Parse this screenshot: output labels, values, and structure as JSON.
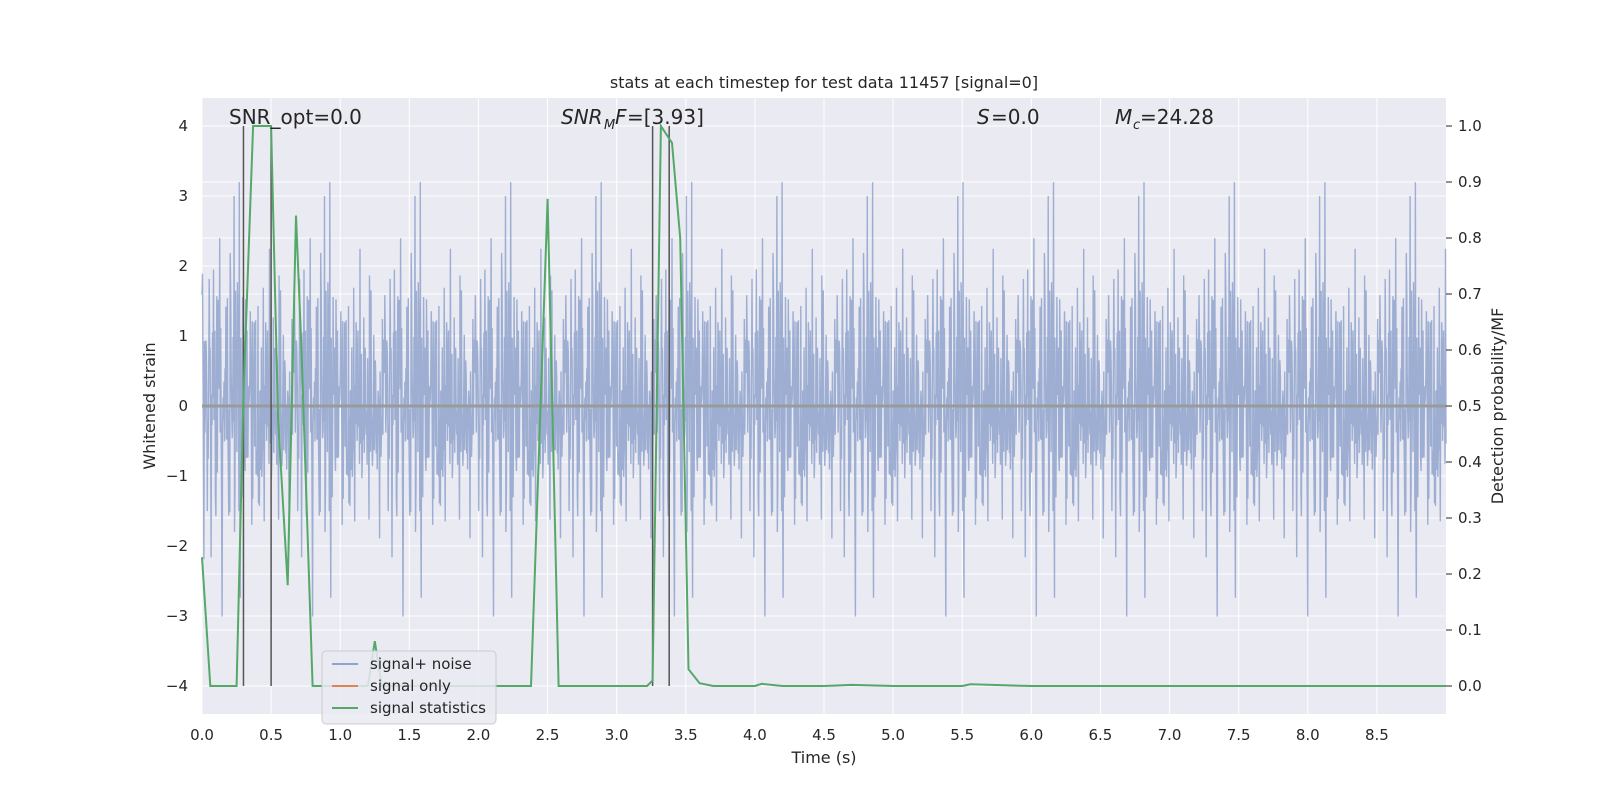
{
  "chart_data": {
    "type": "line",
    "title": "stats at each timestep for test data 11457 [signal=0]",
    "xlabel": "Time (s)",
    "ylabel": "Whitened strain",
    "ylabel_right": "Detection probability/MF",
    "xlim": [
      0.0,
      9.0
    ],
    "ylim": [
      -4.4,
      4.4
    ],
    "ylim_right": [
      -0.05,
      1.05
    ],
    "x_ticks": [
      "0.0",
      "0.5",
      "1.0",
      "1.5",
      "2.0",
      "2.5",
      "3.0",
      "3.5",
      "4.0",
      "4.5",
      "5.0",
      "5.5",
      "6.0",
      "6.5",
      "7.0",
      "7.5",
      "8.0",
      "8.5"
    ],
    "y_ticks": [
      "−4",
      "−3",
      "−2",
      "−1",
      "0",
      "1",
      "2",
      "3",
      "4"
    ],
    "y_right_ticks": [
      "0.0",
      "0.1",
      "0.2",
      "0.3",
      "0.4",
      "0.5",
      "0.6",
      "0.7",
      "0.8",
      "0.9",
      "1.0"
    ],
    "grid": true,
    "legend_position": "lower-left",
    "annotations": {
      "snr_opt": "SNR_opt=0.0",
      "snr_mf": "=[3.93]",
      "s_value": "=0.0",
      "mc_value": "=24.28"
    },
    "series": [
      {
        "name": "signal+ noise",
        "color": "#8fa3cc",
        "kind": "noise",
        "approx_amplitude_range": [
          -3.9,
          3.5
        ]
      },
      {
        "name": "signal only",
        "color": "#dd8452",
        "values_note": "flat",
        "x": [
          0.0,
          9.0
        ],
        "y": [
          0.0,
          0.0
        ]
      },
      {
        "name": "signal statistics",
        "color": "#55a868",
        "axis": "right",
        "x": [
          0.0,
          0.06,
          0.25,
          0.3,
          0.37,
          0.5,
          0.55,
          0.62,
          0.68,
          0.72,
          0.8,
          1.2,
          1.25,
          1.3,
          1.5,
          2.0,
          2.38,
          2.5,
          2.58,
          3.0,
          3.22,
          3.26,
          3.32,
          3.4,
          3.46,
          3.52,
          3.6,
          3.7,
          4.0,
          4.05,
          4.2,
          4.5,
          4.7,
          5.0,
          5.5,
          5.56,
          6.0,
          7.0,
          8.0,
          9.0
        ],
        "y": [
          0.23,
          0.0,
          0.0,
          0.52,
          1.0,
          1.0,
          0.48,
          0.18,
          0.84,
          0.6,
          0.0,
          0.0,
          0.08,
          0.0,
          0.0,
          0.0,
          0.0,
          0.87,
          0.0,
          0.0,
          0.0,
          0.01,
          1.0,
          0.97,
          0.8,
          0.03,
          0.005,
          0.0,
          0.0,
          0.004,
          0.0,
          0.0,
          0.002,
          0.0,
          0.0,
          0.003,
          0.0,
          0.0,
          0.0,
          0.0
        ]
      }
    ],
    "vertical_lines": [
      0.3,
      0.5,
      3.26,
      3.38
    ],
    "vertical_line_color": "#555555"
  }
}
